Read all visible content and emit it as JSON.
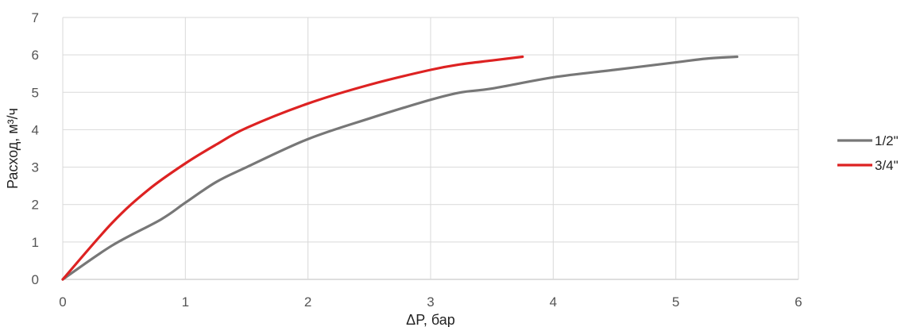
{
  "chart_data": {
    "type": "line",
    "title": "",
    "xlabel": "ΔP, бар",
    "ylabel": "Расход, м³/ч",
    "xlim": [
      0,
      6
    ],
    "ylim": [
      0,
      7
    ],
    "xticks": [
      0,
      1,
      2,
      3,
      4,
      5,
      6
    ],
    "yticks": [
      0,
      1,
      2,
      3,
      4,
      5,
      6,
      7
    ],
    "grid": true,
    "legend_position": "right",
    "series": [
      {
        "name": "1/2\"",
        "color": "#777777",
        "x": [
          0,
          0.4,
          0.8,
          1.0,
          1.25,
          1.5,
          2.0,
          2.5,
          3.0,
          3.25,
          3.5,
          4.0,
          4.5,
          5.0,
          5.25,
          5.5
        ],
        "y": [
          0,
          0.9,
          1.6,
          2.05,
          2.6,
          3.0,
          3.75,
          4.3,
          4.8,
          5.0,
          5.1,
          5.4,
          5.6,
          5.8,
          5.9,
          5.95
        ]
      },
      {
        "name": "3/4\"",
        "color": "#dd2222",
        "x": [
          0,
          0.4,
          0.7,
          1.0,
          1.25,
          1.5,
          2.0,
          2.5,
          3.0,
          3.25,
          3.5,
          3.75
        ],
        "y": [
          0,
          1.5,
          2.4,
          3.1,
          3.6,
          4.05,
          4.7,
          5.2,
          5.6,
          5.75,
          5.85,
          5.95
        ]
      }
    ]
  }
}
